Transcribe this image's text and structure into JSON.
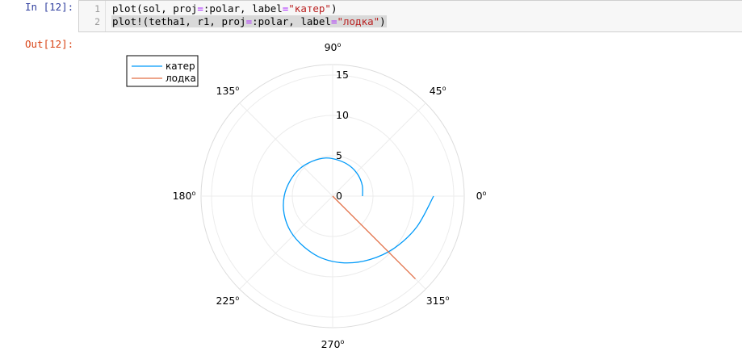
{
  "cell": {
    "in_prompt": "In [12]:",
    "out_prompt": "Out[12]:",
    "line_numbers": [
      "1",
      "2"
    ],
    "line1": {
      "fn": "plot",
      "p1": "(sol, proj",
      "op": "=",
      "p2": ":polar, label",
      "op2": "=",
      "str": "\"катер\"",
      "p3": ")"
    },
    "line2": {
      "fn": "plot!",
      "p1": "(tetha1, r1, proj",
      "op": "=",
      "p2": ":polar, label",
      "op2": "=",
      "str": "\"лодка\"",
      "p3": ")"
    }
  },
  "chart_data": {
    "type": "line",
    "projection": "polar",
    "angle_ticks": [
      {
        "deg": "0",
        "sup": "o"
      },
      {
        "deg": "45",
        "sup": "o"
      },
      {
        "deg": "90",
        "sup": "o"
      },
      {
        "deg": "135",
        "sup": "o"
      },
      {
        "deg": "180",
        "sup": "o"
      },
      {
        "deg": "225",
        "sup": "o"
      },
      {
        "deg": "270",
        "sup": "o"
      },
      {
        "deg": "315",
        "sup": "o"
      }
    ],
    "r_ticks": [
      "0",
      "5",
      "10",
      "15"
    ],
    "rlim": [
      0,
      16.3
    ],
    "grid": true,
    "legend_position": "top-left",
    "series": [
      {
        "name": "катер",
        "color": "#009af9",
        "theta_deg": [
          0,
          20,
          40,
          60,
          80,
          100,
          120,
          140,
          160,
          180,
          200,
          220,
          240,
          260,
          280,
          300,
          320,
          340,
          360
        ],
        "r": [
          3.7,
          3.9,
          4.1,
          4.3,
          4.5,
          4.8,
          5.0,
          5.3,
          5.6,
          6.0,
          6.4,
          6.8,
          7.2,
          7.8,
          8.4,
          9.1,
          10.0,
          11.1,
          12.5
        ]
      },
      {
        "name": "лодка",
        "color": "#e26f46",
        "theta_deg": [
          315,
          315
        ],
        "r": [
          0,
          14.5
        ]
      }
    ]
  }
}
